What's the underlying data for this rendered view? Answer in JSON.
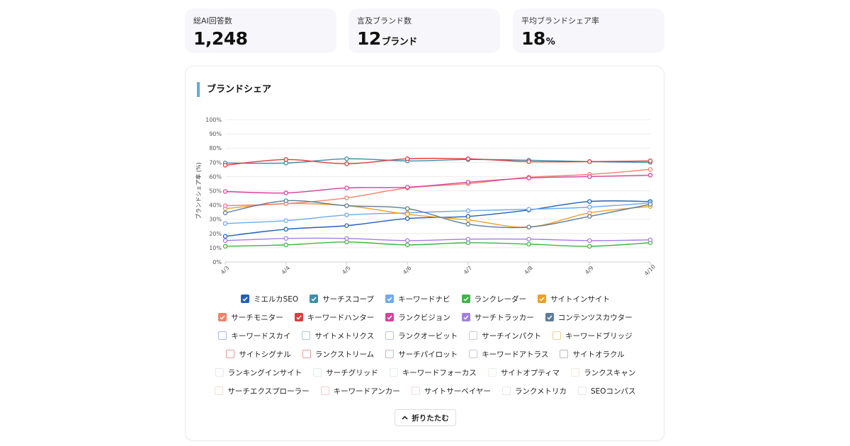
{
  "stats": [
    {
      "label": "総AI回答数",
      "value": "1,248",
      "unit": ""
    },
    {
      "label": "言及ブランド数",
      "value": "12",
      "unit": "ブランド"
    },
    {
      "label": "平均ブランドシェア率",
      "value": "18",
      "unit": "%"
    }
  ],
  "section_title": "ブランドシェア",
  "collapse_label": "折りたたむ",
  "chart_data": {
    "type": "line",
    "title": "ブランドシェア",
    "ylabel": "ブランドシェア率 (%)",
    "xlabel": "",
    "ylim": [
      0,
      100
    ],
    "y_ticks": [
      "0%",
      "10%",
      "20%",
      "30%",
      "40%",
      "50%",
      "60%",
      "70%",
      "80%",
      "90%",
      "100%"
    ],
    "x": [
      "4/3",
      "4/4",
      "4/5",
      "4/6",
      "4/7",
      "4/8",
      "4/9",
      "4/10"
    ],
    "grid": true,
    "legend_position": "bottom",
    "series": [
      {
        "name": "ミエルカSEO",
        "color": "#2460b8",
        "visible": true,
        "values": [
          18,
          23,
          25.5,
          30.5,
          32,
          36.5,
          42.5,
          42.5
        ]
      },
      {
        "name": "サーチスコープ",
        "color": "#3d8ea8",
        "visible": true,
        "values": [
          69.5,
          69.5,
          72.5,
          71,
          72,
          71.5,
          70.5,
          70
        ]
      },
      {
        "name": "キーワードナビ",
        "color": "#6eaaf0",
        "visible": true,
        "values": [
          27,
          29,
          33,
          34.5,
          36,
          37,
          38.5,
          41.5
        ]
      },
      {
        "name": "ランクレーダー",
        "color": "#3fb446",
        "visible": true,
        "values": [
          11,
          12,
          14,
          12,
          13.5,
          12.5,
          11,
          13.5
        ]
      },
      {
        "name": "サイトインサイト",
        "color": "#f0a020",
        "visible": true,
        "values": [
          37.5,
          41,
          39.5,
          33.5,
          29.5,
          24.5,
          34.5,
          39
        ]
      },
      {
        "name": "サーチモニター",
        "color": "#f5806a",
        "visible": true,
        "values": [
          39.5,
          41,
          45,
          52,
          55,
          59.5,
          61.5,
          65
        ]
      },
      {
        "name": "キーワードハンター",
        "color": "#e03c3c",
        "visible": true,
        "values": [
          68,
          72,
          69,
          72.5,
          72.5,
          70.5,
          70.5,
          71
        ]
      },
      {
        "name": "ランクビジョン",
        "color": "#d8409a",
        "visible": true,
        "values": [
          49.5,
          48.5,
          52,
          52.5,
          56,
          59,
          60,
          61
        ]
      },
      {
        "name": "サーチトラッカー",
        "color": "#a27ee0",
        "visible": true,
        "values": [
          15,
          16.5,
          16.5,
          15,
          16,
          16,
          15,
          15.5
        ]
      },
      {
        "name": "コンテンツスカウター",
        "color": "#5e7c9a",
        "visible": true,
        "values": [
          34.5,
          43,
          39.5,
          37.5,
          26.5,
          24.5,
          32,
          40.5
        ]
      },
      {
        "name": "キーワードスカイ",
        "color": "#a4b8e6",
        "visible": false
      },
      {
        "name": "サイトメトリクス",
        "color": "#a4ccd0",
        "visible": false
      },
      {
        "name": "ランクオービット",
        "color": "#b8c4d6",
        "visible": false
      },
      {
        "name": "サーチインパクト",
        "color": "#c6ccc6",
        "visible": false
      },
      {
        "name": "キーワードブリッジ",
        "color": "#f2ce96",
        "visible": false
      },
      {
        "name": "サイトシグナル",
        "color": "#ef9a9a",
        "visible": false
      },
      {
        "name": "ランクストリーム",
        "color": "#ec9a94",
        "visible": false
      },
      {
        "name": "サーチパイロット",
        "color": "#d8b4c2",
        "visible": false
      },
      {
        "name": "キーワードアトラス",
        "color": "#cbc6dc",
        "visible": false
      },
      {
        "name": "サイトオラクル",
        "color": "#bcbcbc",
        "visible": false
      },
      {
        "name": "ランキングインサイト",
        "color": "#e2e8f4",
        "visible": false
      },
      {
        "name": "サーチグリッド",
        "color": "#dcecf0",
        "visible": false
      },
      {
        "name": "キーワードフォーカス",
        "color": "#e8eeee",
        "visible": false
      },
      {
        "name": "サイトオプティマ",
        "color": "#e4f0e4",
        "visible": false
      },
      {
        "name": "ランクスキャン",
        "color": "#f6ead6",
        "visible": false
      },
      {
        "name": "サーチエクスプローラー",
        "color": "#f4dcd2",
        "visible": false
      },
      {
        "name": "キーワードアンカー",
        "color": "#f2cace",
        "visible": false
      },
      {
        "name": "サイトサーベイヤー",
        "color": "#f2dada",
        "visible": false
      },
      {
        "name": "ランクメトリカ",
        "color": "#e8e4ea",
        "visible": false
      },
      {
        "name": "SEOコンパス",
        "color": "#e2e6ec",
        "visible": false
      }
    ]
  }
}
